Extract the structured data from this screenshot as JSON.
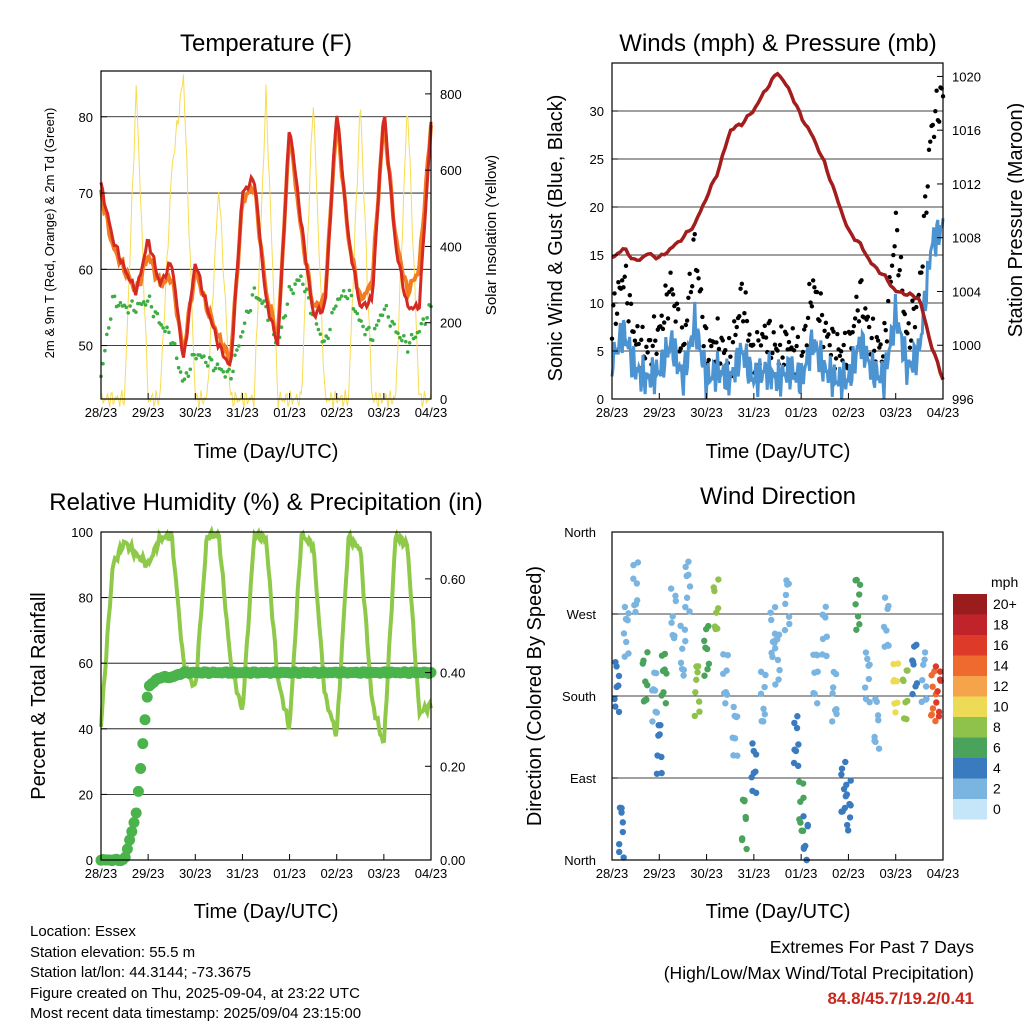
{
  "time_axis": {
    "xlabel": "Time (Day/UTC)",
    "tick_labels": [
      "28/23",
      "29/23",
      "30/23",
      "31/23",
      "01/23",
      "02/23",
      "03/23",
      "04/23"
    ]
  },
  "panels": {
    "temperature": {
      "title": "Temperature (F)",
      "ylabel_left": "2m & 9m T (Red, Orange) & 2m Td (Green)",
      "ylabel_right": "Solar Insolation (Yellow)",
      "left_ticks": [
        "50",
        "60",
        "70",
        "80"
      ],
      "right_ticks": [
        "0",
        "200",
        "400",
        "600",
        "800"
      ]
    },
    "wind": {
      "title": "Winds (mph) & Pressure (mb)",
      "ylabel_left": "Sonic Wind & Gust (Blue, Black)",
      "ylabel_right": "Station Pressure (Maroon)",
      "left_ticks": [
        "0",
        "5",
        "10",
        "15",
        "20",
        "25",
        "30"
      ],
      "right_ticks": [
        "996",
        "1000",
        "1004",
        "1008",
        "1012",
        "1016",
        "1020"
      ]
    },
    "humidity": {
      "title": "Relative Humidity (%) & Precipitation (in)",
      "ylabel_left": "Percent & Total Rainfall",
      "left_ticks": [
        "0",
        "20",
        "40",
        "60",
        "80",
        "100"
      ],
      "right_ticks": [
        "0.00",
        "0.20",
        "0.40",
        "0.60"
      ]
    },
    "direction": {
      "title": "Wind Direction",
      "ylabel_left": "Direction (Colored By Speed)",
      "dir_labels": [
        "North",
        "East",
        "South",
        "West",
        "North"
      ],
      "legend_title": "mph",
      "legend_labels": [
        "20+",
        "18",
        "16",
        "14",
        "12",
        "10",
        "8",
        "6",
        "4",
        "2",
        "0"
      ],
      "legend_colors": [
        "#9b1c1c",
        "#c0242a",
        "#de3a2a",
        "#ef6a2e",
        "#f6a44c",
        "#eedb55",
        "#8ec24a",
        "#4aa35a",
        "#3a7bc0",
        "#7ab4e0",
        "#c5e6f8"
      ]
    }
  },
  "colors": {
    "temp_2m": "#d42a22",
    "temp_9m": "#f37b20",
    "dewpoint": "#3cae43",
    "solar": "#f7dc54",
    "wind": "#4b93d1",
    "gust": "#000000",
    "pressure": "#a31d1d",
    "rh": "#8ec94a",
    "precip": "#4bb34b"
  },
  "chart_data": [
    {
      "type": "line",
      "title": "Temperature (F)",
      "xlabel": "Time (Day/UTC)",
      "ylabel": "2m & 9m T (Red, Orange) & 2m Td (Green)",
      "y2label": "Solar Insolation (Yellow)",
      "x": [
        0,
        0.25,
        0.5,
        0.75,
        1,
        1.25,
        1.5,
        1.75,
        2,
        2.25,
        2.5,
        2.75,
        3,
        3.25,
        3.5,
        3.75,
        4,
        4.25,
        4.5,
        4.75,
        5,
        5.25,
        5.5,
        5.75,
        6,
        6.25,
        6.5,
        6.75,
        7
      ],
      "ylim": [
        43,
        86
      ],
      "y2lim": [
        0,
        860
      ],
      "series": [
        {
          "name": "2m T",
          "values": [
            71,
            64,
            60,
            57,
            64,
            58,
            61,
            48,
            61,
            55,
            50,
            47,
            70,
            72,
            56,
            50,
            79,
            66,
            54,
            55,
            81,
            64,
            55,
            56,
            81,
            63,
            55,
            55,
            79
          ]
        },
        {
          "name": "9m T",
          "values": [
            70,
            63,
            60,
            57,
            62,
            58,
            59,
            49,
            60,
            55,
            51,
            48,
            69,
            71,
            57,
            51,
            78,
            65,
            55,
            56,
            80,
            64,
            56,
            58,
            80,
            64,
            57,
            60,
            79
          ]
        },
        {
          "name": "2m Td",
          "values": [
            46,
            56,
            55,
            55,
            56,
            53,
            51,
            45,
            49,
            48,
            47,
            46,
            52,
            57,
            55,
            50,
            57,
            59,
            54,
            50,
            56,
            57,
            53,
            51,
            55,
            52,
            50,
            52,
            55
          ]
        },
        {
          "name": "Solar Insolation",
          "values": [
            0,
            0,
            0,
            820,
            0,
            0,
            600,
            850,
            0,
            0,
            560,
            0,
            0,
            0,
            800,
            0,
            0,
            0,
            790,
            0,
            0,
            0,
            780,
            0,
            0,
            0,
            780,
            0,
            0
          ]
        }
      ]
    },
    {
      "type": "line",
      "title": "Winds (mph) & Pressure (mb)",
      "xlabel": "Time (Day/UTC)",
      "ylabel": "Sonic Wind & Gust (Blue, Black)",
      "y2label": "Station Pressure (Maroon)",
      "x": [
        0,
        0.25,
        0.5,
        0.75,
        1,
        1.25,
        1.5,
        1.75,
        2,
        2.25,
        2.5,
        2.75,
        3,
        3.25,
        3.5,
        3.75,
        4,
        4.25,
        4.5,
        4.75,
        5,
        5.25,
        5.5,
        5.75,
        6,
        6.25,
        6.5,
        6.75,
        7
      ],
      "ylim": [
        0,
        35
      ],
      "y2lim": [
        996,
        1021
      ],
      "series": [
        {
          "name": "Sonic Wind",
          "values": [
            4,
            7,
            3,
            2,
            3,
            6,
            2,
            8,
            2,
            3,
            2,
            5,
            2,
            3,
            2,
            3,
            2,
            6,
            3,
            2,
            2,
            6,
            3,
            2,
            9,
            3,
            5,
            16,
            18
          ]
        },
        {
          "name": "Gust",
          "values": [
            8,
            13,
            6,
            5,
            7,
            12,
            5,
            16,
            5,
            6,
            4,
            11,
            4,
            7,
            5,
            6,
            4,
            12,
            7,
            5,
            5,
            11,
            6,
            5,
            18,
            6,
            11,
            28,
            32
          ]
        },
        {
          "name": "Station Pressure",
          "values": [
            1006.5,
            1007.2,
            1006.2,
            1006.8,
            1006.5,
            1007.2,
            1008,
            1009,
            1011,
            1013,
            1016,
            1016.5,
            1017.5,
            1019,
            1020.3,
            1019,
            1017,
            1015.5,
            1013.5,
            1011,
            1008.5,
            1007.5,
            1006,
            1005.2,
            1004,
            1003.8,
            1003.5,
            1000,
            997.5
          ]
        }
      ]
    },
    {
      "type": "line",
      "title": "Relative Humidity (%) & Precipitation (in)",
      "xlabel": "Time (Day/UTC)",
      "ylabel": "Percent & Total Rainfall",
      "x": [
        0,
        0.25,
        0.5,
        0.75,
        1,
        1.25,
        1.5,
        1.75,
        2,
        2.25,
        2.5,
        2.75,
        3,
        3.25,
        3.5,
        3.75,
        4,
        4.25,
        4.5,
        4.75,
        5,
        5.25,
        5.5,
        5.75,
        6,
        6.25,
        6.5,
        6.75,
        7
      ],
      "ylim": [
        0,
        100
      ],
      "y2lim": [
        0,
        0.7
      ],
      "series": [
        {
          "name": "Relative Humidity",
          "values": [
            41,
            90,
            97,
            93,
            90,
            98,
            99,
            60,
            52,
            99,
            99,
            60,
            45,
            99,
            98,
            55,
            40,
            99,
            96,
            50,
            38,
            98,
            95,
            48,
            35,
            99,
            96,
            45,
            47
          ]
        },
        {
          "name": "Total Precipitation",
          "values": [
            0,
            0,
            0,
            0.1,
            0.37,
            0.39,
            0.39,
            0.4,
            0.4,
            0.4,
            0.4,
            0.4,
            0.4,
            0.4,
            0.4,
            0.4,
            0.4,
            0.4,
            0.4,
            0.4,
            0.4,
            0.4,
            0.4,
            0.4,
            0.4,
            0.4,
            0.4,
            0.4,
            0.4
          ]
        }
      ]
    },
    {
      "type": "scatter",
      "title": "Wind Direction",
      "xlabel": "Time (Day/UTC)",
      "ylabel": "Direction (Colored By Speed)",
      "ylim": [
        0,
        360
      ],
      "x": [
        0.1,
        0.2,
        0.3,
        0.5,
        0.7,
        0.9,
        1.0,
        1.1,
        1.3,
        1.5,
        1.6,
        1.8,
        2.0,
        2.2,
        2.4,
        2.6,
        2.8,
        3.0,
        3.2,
        3.4,
        3.5,
        3.7,
        3.9,
        4.0,
        4.1,
        4.3,
        4.5,
        4.7,
        4.9,
        5.0,
        5.2,
        5.4,
        5.6,
        5.8,
        6.0,
        6.2,
        6.4,
        6.6,
        6.8,
        6.9
      ],
      "y": [
        190,
        30,
        250,
        300,
        200,
        180,
        120,
        200,
        270,
        230,
        300,
        185,
        230,
        280,
        200,
        140,
        40,
        100,
        180,
        250,
        220,
        280,
        130,
        60,
        20,
        200,
        250,
        180,
        80,
        60,
        280,
        200,
        150,
        260,
        190,
        180,
        210,
        200,
        180,
        185
      ],
      "speeds": [
        4,
        5,
        3,
        2,
        6,
        3,
        4,
        7,
        2,
        3,
        2,
        8,
        6,
        9,
        2,
        3,
        6,
        5,
        3,
        2,
        2,
        3,
        4,
        7,
        4,
        2,
        2,
        3,
        4,
        5,
        7,
        3,
        2,
        2,
        10,
        8,
        4,
        2,
        14,
        16
      ]
    }
  ],
  "footer": {
    "location": "Location: Essex",
    "elevation": "Station elevation: 55.5 m",
    "latlon": "Station lat/lon: 44.3144; -73.3675",
    "created": "Figure created on Thu, 2025-09-04, at 23:22 UTC",
    "latest": "Most recent data timestamp: 2025/09/04 23:15:00",
    "extremes_title": "Extremes For Past 7 Days",
    "extremes_subtitle": "(High/Low/Max Wind/Total Precipitation)",
    "extremes_values": "84.8/45.7/19.2/0.41"
  }
}
